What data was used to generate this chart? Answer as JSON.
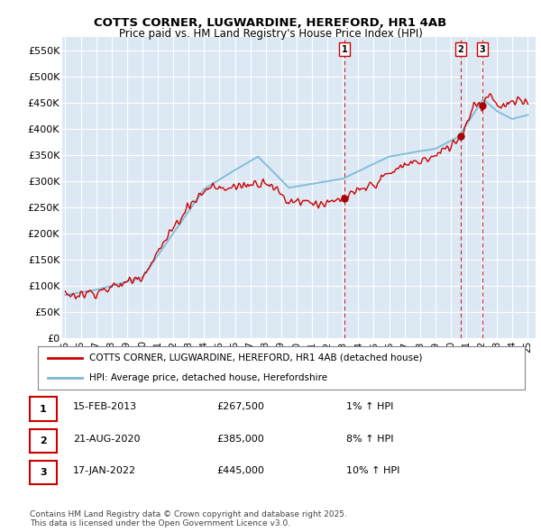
{
  "title": "COTTS CORNER, LUGWARDINE, HEREFORD, HR1 4AB",
  "subtitle": "Price paid vs. HM Land Registry's House Price Index (HPI)",
  "ylabel_ticks": [
    "£0",
    "£50K",
    "£100K",
    "£150K",
    "£200K",
    "£250K",
    "£300K",
    "£350K",
    "£400K",
    "£450K",
    "£500K",
    "£550K"
  ],
  "ytick_values": [
    0,
    50000,
    100000,
    150000,
    200000,
    250000,
    300000,
    350000,
    400000,
    450000,
    500000,
    550000
  ],
  "ylim": [
    0,
    575000
  ],
  "xlim_start": 1994.8,
  "xlim_end": 2025.5,
  "plot_bg_color": "#dce9f5",
  "grid_color": "#ffffff",
  "red_line_color": "#cc0000",
  "blue_line_color": "#7ab8d4",
  "dot_color": "#aa0000",
  "transaction_dates": [
    2013.12,
    2020.64,
    2022.04
  ],
  "transaction_values": [
    267500,
    385000,
    445000
  ],
  "transaction_labels": [
    "1",
    "2",
    "3"
  ],
  "vline_color": "#cc0000",
  "legend_entries": [
    "COTTS CORNER, LUGWARDINE, HEREFORD, HR1 4AB (detached house)",
    "HPI: Average price, detached house, Herefordshire"
  ],
  "table_rows": [
    {
      "num": "1",
      "date": "15-FEB-2013",
      "price": "£267,500",
      "change": "1% ↑ HPI"
    },
    {
      "num": "2",
      "date": "21-AUG-2020",
      "price": "£385,000",
      "change": "8% ↑ HPI"
    },
    {
      "num": "3",
      "date": "17-JAN-2022",
      "price": "£445,000",
      "change": "10% ↑ HPI"
    }
  ],
  "footer": "Contains HM Land Registry data © Crown copyright and database right 2025.\nThis data is licensed under the Open Government Licence v3.0.",
  "xtick_years": [
    1995,
    1996,
    1997,
    1998,
    1999,
    2000,
    2001,
    2002,
    2003,
    2004,
    2005,
    2006,
    2007,
    2008,
    2009,
    2010,
    2011,
    2012,
    2013,
    2014,
    2015,
    2016,
    2017,
    2018,
    2019,
    2020,
    2021,
    2022,
    2023,
    2024,
    2025
  ],
  "xtick_labels": [
    "95",
    "96",
    "97",
    "98",
    "99",
    "00",
    "01",
    "02",
    "03",
    "04",
    "05",
    "06",
    "07",
    "08",
    "09",
    "10",
    "11",
    "12",
    "13",
    "14",
    "15",
    "16",
    "17",
    "18",
    "19",
    "20",
    "21",
    "22",
    "23",
    "24",
    "25"
  ]
}
